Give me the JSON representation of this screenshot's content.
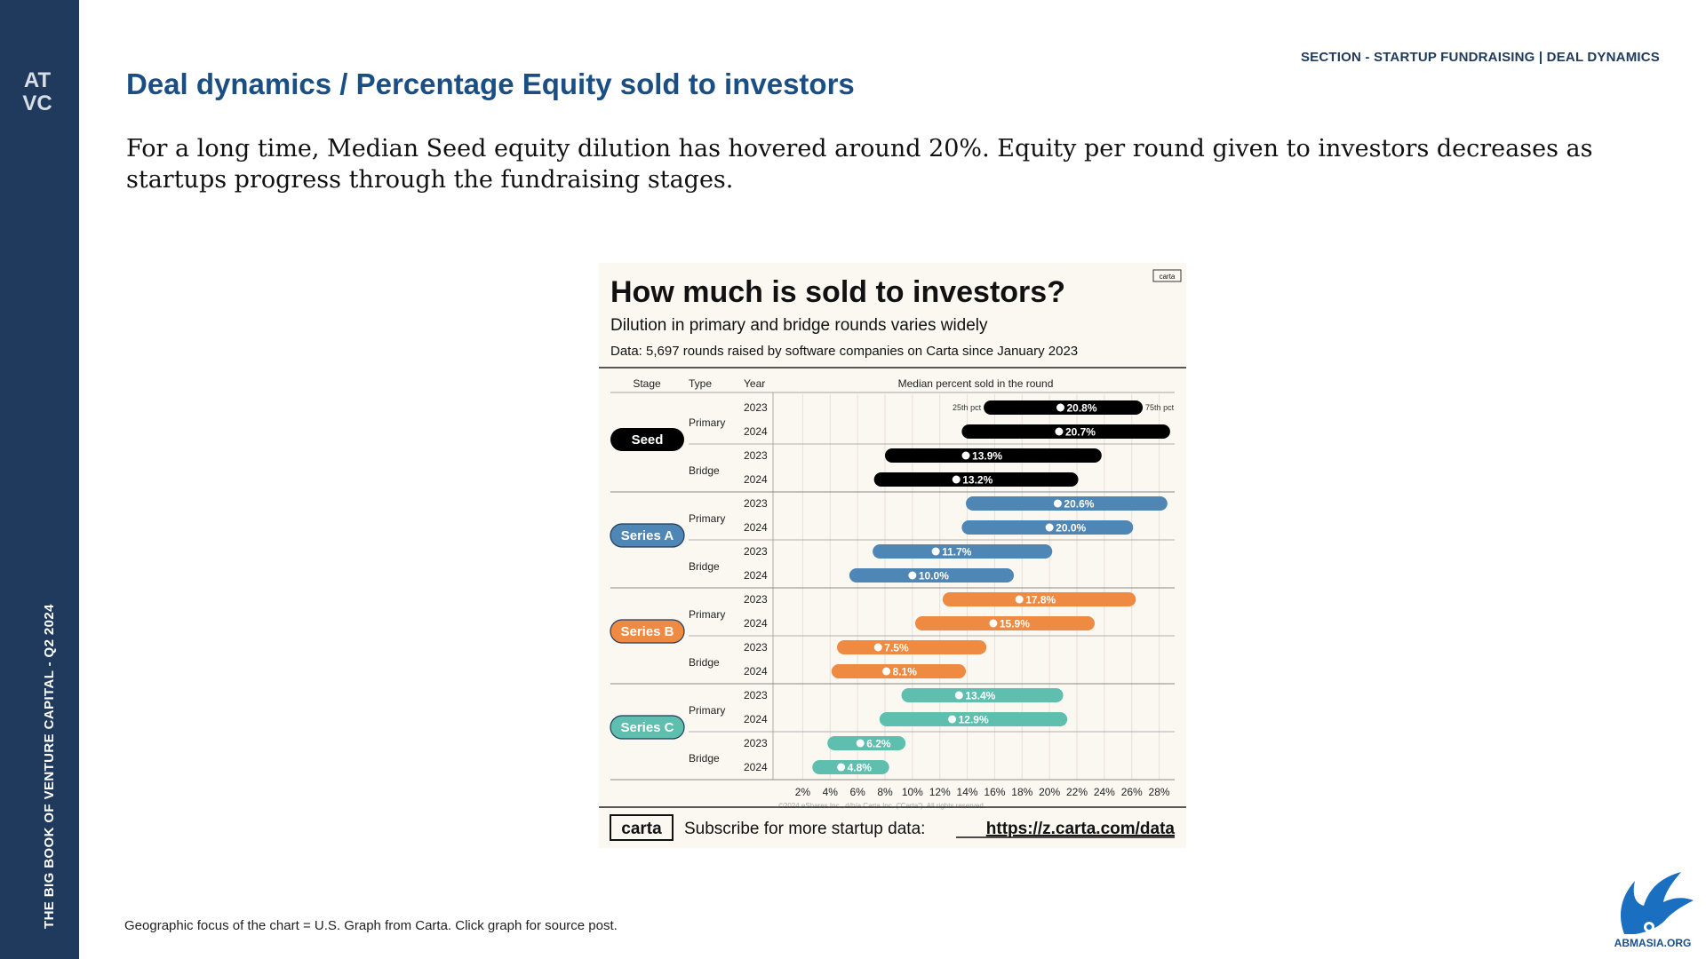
{
  "sidebar": {
    "vertical_text": "THE BIG BOOK OF VENTURE CAPITAL - Q2 2024",
    "logo_text": "AT VC"
  },
  "header": {
    "section_label": "SECTION - STARTUP FUNDRAISING | DEAL DYNAMICS",
    "title": "Deal dynamics / Percentage Equity sold to investors",
    "subtitle": "For a long time, Median Seed equity dilution has hovered around 20%. Equity per round given to investors decreases as startups progress through the fundraising stages."
  },
  "chart_data": {
    "type": "bar",
    "subtype": "range-with-median",
    "title": "How much is sold to investors?",
    "subtitle": "Dilution in primary and bridge rounds varies widely",
    "note": "Data: 5,697 rounds raised by software companies on Carta since January 2023",
    "brand_label": "carta",
    "columns": {
      "stage": "Stage",
      "type": "Type",
      "year": "Year",
      "value": "Median percent sold in the round"
    },
    "range_labels": {
      "low": "25th pct",
      "high": "75th pct"
    },
    "xlim": [
      1,
      29
    ],
    "x_ticks": [
      2,
      4,
      6,
      8,
      10,
      12,
      14,
      16,
      18,
      20,
      22,
      24,
      26,
      28
    ],
    "x_tick_labels": [
      "2%",
      "4%",
      "6%",
      "8%",
      "10%",
      "12%",
      "14%",
      "16%",
      "18%",
      "20%",
      "22%",
      "24%",
      "26%",
      "28%"
    ],
    "grid": true,
    "copyright": "©2024 eShares Inc., d/b/a Carta Inc. (\"Carta\"). All rights reserved.",
    "footer": {
      "logo": "carta",
      "text": "Subscribe for more startup data:",
      "link": "https://z.carta.com/data"
    },
    "stages": [
      {
        "name": "Seed",
        "color": "#000000",
        "types": [
          {
            "name": "Primary",
            "years": [
              {
                "year": "2023",
                "p25": 15.2,
                "median": 20.8,
                "p75": 26.8,
                "label": "20.8%"
              },
              {
                "year": "2024",
                "p25": 13.6,
                "median": 20.7,
                "p75": 28.8,
                "label": "20.7%"
              }
            ]
          },
          {
            "name": "Bridge",
            "years": [
              {
                "year": "2023",
                "p25": 8.0,
                "median": 13.9,
                "p75": 23.8,
                "label": "13.9%"
              },
              {
                "year": "2024",
                "p25": 7.2,
                "median": 13.2,
                "p75": 22.1,
                "label": "13.2%"
              }
            ]
          }
        ]
      },
      {
        "name": "Series A",
        "color": "#4e86b5",
        "types": [
          {
            "name": "Primary",
            "years": [
              {
                "year": "2023",
                "p25": 13.9,
                "median": 20.6,
                "p75": 28.6,
                "label": "20.6%"
              },
              {
                "year": "2024",
                "p25": 13.6,
                "median": 20.0,
                "p75": 26.1,
                "label": "20.0%"
              }
            ]
          },
          {
            "name": "Bridge",
            "years": [
              {
                "year": "2023",
                "p25": 7.1,
                "median": 11.7,
                "p75": 20.2,
                "label": "11.7%"
              },
              {
                "year": "2024",
                "p25": 5.4,
                "median": 10.0,
                "p75": 17.4,
                "label": "10.0%"
              }
            ]
          }
        ]
      },
      {
        "name": "Series B",
        "color": "#ef8a42",
        "types": [
          {
            "name": "Primary",
            "years": [
              {
                "year": "2023",
                "p25": 12.2,
                "median": 17.8,
                "p75": 26.3,
                "label": "17.8%"
              },
              {
                "year": "2024",
                "p25": 10.2,
                "median": 15.9,
                "p75": 23.3,
                "label": "15.9%"
              }
            ]
          },
          {
            "name": "Bridge",
            "years": [
              {
                "year": "2023",
                "p25": 4.5,
                "median": 7.5,
                "p75": 15.4,
                "label": "7.5%"
              },
              {
                "year": "2024",
                "p25": 4.1,
                "median": 8.1,
                "p75": 13.9,
                "label": "8.1%"
              }
            ]
          }
        ]
      },
      {
        "name": "Series C",
        "color": "#5fbfae",
        "types": [
          {
            "name": "Primary",
            "years": [
              {
                "year": "2023",
                "p25": 9.2,
                "median": 13.4,
                "p75": 21.0,
                "label": "13.4%"
              },
              {
                "year": "2024",
                "p25": 7.6,
                "median": 12.9,
                "p75": 21.3,
                "label": "12.9%"
              }
            ]
          },
          {
            "name": "Bridge",
            "years": [
              {
                "year": "2023",
                "p25": 3.8,
                "median": 6.2,
                "p75": 9.5,
                "label": "6.2%"
              },
              {
                "year": "2024",
                "p25": 2.7,
                "median": 4.8,
                "p75": 8.3,
                "label": "4.8%"
              }
            ]
          }
        ]
      }
    ]
  },
  "footnote": "Geographic focus of the chart = U.S. Graph from Carta. Click graph for source post.",
  "corner_logo": {
    "text": "ABMASIA.ORG",
    "color": "#1a6fc1"
  }
}
